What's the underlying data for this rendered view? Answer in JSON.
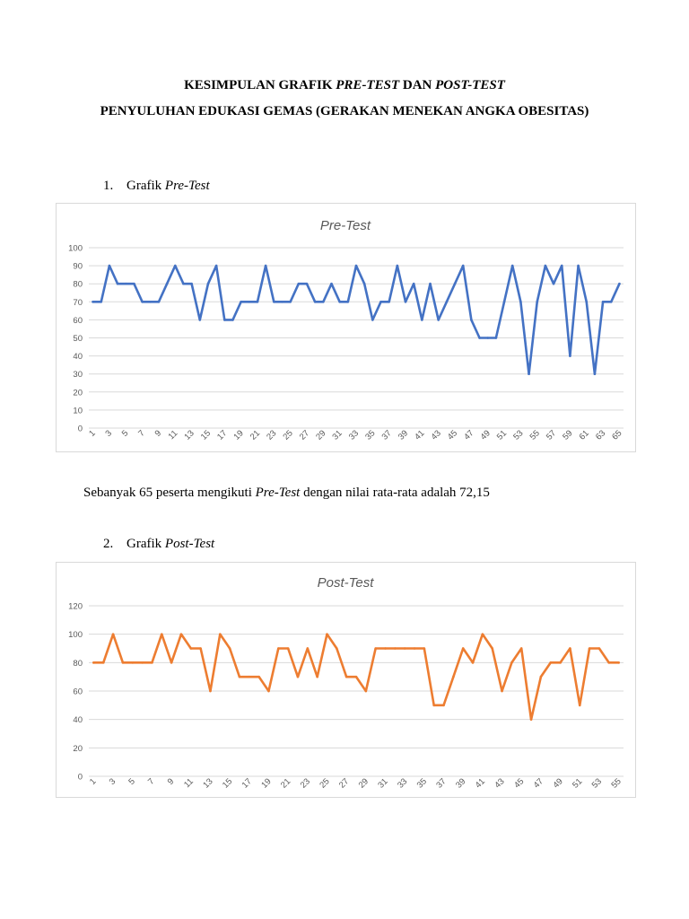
{
  "header": {
    "line1_a": "KESIMPULAN GRAFIK ",
    "line1_b": "PRE-TEST",
    "line1_c": " DAN ",
    "line1_d": "POST-TEST",
    "line2": "PENYULUHAN EDUKASI GEMAS (GERAKAN MENEKAN ANGKA OBESITAS)"
  },
  "section1": {
    "number": "1.",
    "label": "Grafik ",
    "label_italic": "Pre-Test"
  },
  "summary": {
    "a": "Sebanyak 65 peserta mengikuti ",
    "b": "Pre-Test",
    "c": " dengan nilai rata-rata adalah 72,15"
  },
  "section2": {
    "number": "2.",
    "label": "Grafik ",
    "label_italic": "Post-Test"
  },
  "chart_data": [
    {
      "type": "line",
      "title": "Pre-Test",
      "color": "#4472c4",
      "ylim": [
        0,
        100
      ],
      "yticks": [
        0,
        10,
        20,
        30,
        40,
        50,
        60,
        70,
        80,
        90,
        100
      ],
      "xtick_step": 2,
      "grid": true,
      "values": [
        70,
        70,
        90,
        80,
        80,
        80,
        70,
        70,
        70,
        80,
        90,
        80,
        80,
        60,
        80,
        90,
        60,
        60,
        70,
        70,
        70,
        90,
        70,
        70,
        70,
        80,
        80,
        70,
        70,
        80,
        70,
        70,
        90,
        80,
        60,
        70,
        70,
        90,
        70,
        80,
        60,
        80,
        60,
        70,
        80,
        90,
        60,
        50,
        50,
        50,
        70,
        90,
        70,
        30,
        70,
        90,
        80,
        90,
        40,
        90,
        70,
        30,
        70,
        70,
        80
      ]
    },
    {
      "type": "line",
      "title": "Post-Test",
      "color": "#ed7d31",
      "ylim": [
        0,
        120
      ],
      "yticks": [
        0,
        20,
        40,
        60,
        80,
        100,
        120
      ],
      "xtick_step": 2,
      "grid": true,
      "values": [
        80,
        80,
        100,
        80,
        80,
        80,
        80,
        100,
        80,
        100,
        90,
        90,
        60,
        100,
        90,
        70,
        70,
        70,
        60,
        90,
        90,
        70,
        90,
        70,
        100,
        90,
        70,
        70,
        60,
        90,
        90,
        90,
        90,
        90,
        90,
        50,
        50,
        70,
        90,
        80,
        100,
        90,
        60,
        80,
        90,
        40,
        70,
        80,
        80,
        90,
        50,
        90,
        90,
        80,
        80
      ]
    }
  ]
}
